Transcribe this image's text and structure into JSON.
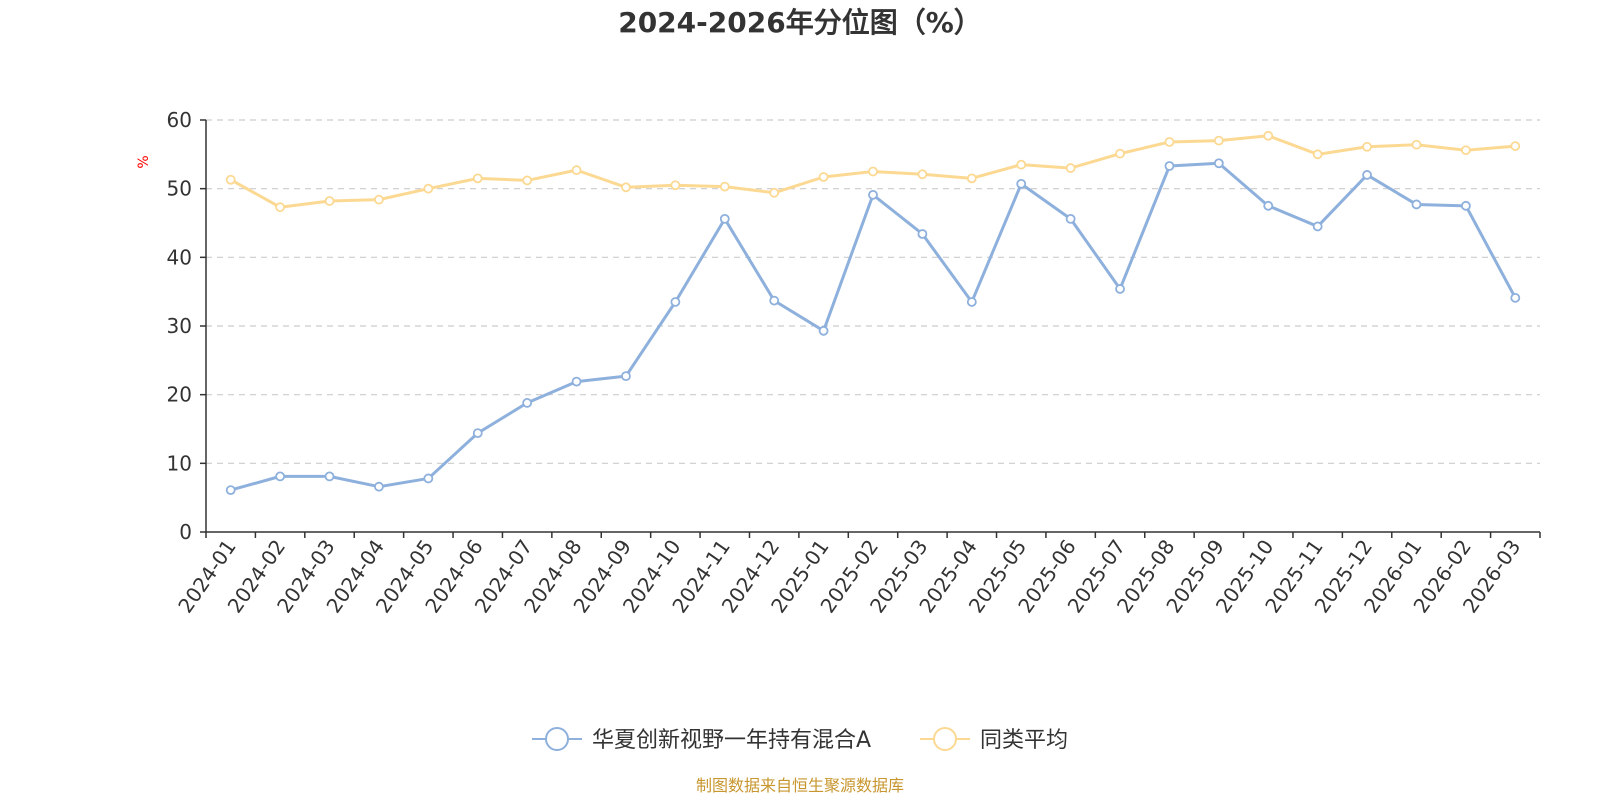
{
  "chart_data": {
    "type": "line",
    "title": "2024-2026年分位图（%）",
    "ylabel": "%",
    "xlabel": "",
    "ylim": [
      0,
      60
    ],
    "yticks": [
      0,
      10,
      20,
      30,
      40,
      50,
      60
    ],
    "grid": true,
    "legend_position": "bottom-center",
    "categories": [
      "2024-01",
      "2024-02",
      "2024-03",
      "2024-04",
      "2024-05",
      "2024-06",
      "2024-07",
      "2024-08",
      "2024-09",
      "2024-10",
      "2024-11",
      "2024-12",
      "2025-01",
      "2025-02",
      "2025-03",
      "2025-04",
      "2025-05",
      "2025-06",
      "2025-07",
      "2025-08",
      "2025-09",
      "2025-10",
      "2025-11",
      "2025-12",
      "2026-01",
      "2026-02",
      "2026-03"
    ],
    "series": [
      {
        "name": "华夏创新视野一年持有混合A",
        "color": "#8eb0dc",
        "values": [
          6.1,
          8.1,
          8.1,
          6.6,
          7.8,
          14.4,
          18.8,
          21.9,
          22.7,
          33.5,
          45.6,
          33.7,
          29.3,
          49.1,
          43.4,
          33.5,
          50.7,
          45.6,
          35.4,
          53.3,
          53.7,
          47.5,
          44.5,
          52.0,
          47.7,
          47.5,
          34.1
        ]
      },
      {
        "name": "同类平均",
        "color": "#fcd993",
        "values": [
          51.3,
          47.3,
          48.2,
          48.4,
          50.0,
          51.5,
          51.2,
          52.7,
          50.2,
          50.5,
          50.3,
          49.4,
          51.7,
          52.5,
          52.1,
          51.5,
          53.5,
          53.0,
          55.1,
          56.8,
          57.0,
          57.7,
          55.0,
          56.1,
          56.4,
          55.6,
          56.2
        ]
      }
    ],
    "source": "制图数据来自恒生聚源数据库"
  }
}
